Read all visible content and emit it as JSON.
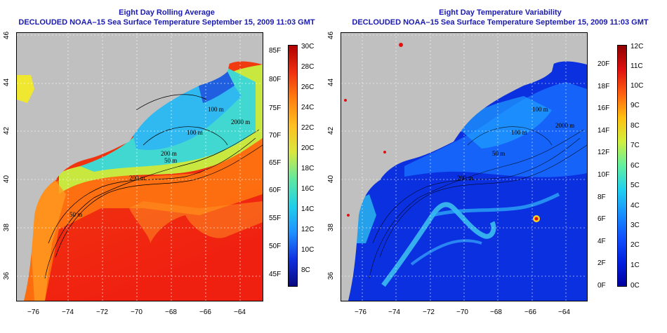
{
  "panels": [
    {
      "title_line1": "Eight Day Rolling Average",
      "title_line2": "DECLOUDED NOAA–15 Sea Surface Temperature September 15, 2009 11:03 GMT",
      "lat_ticks": [
        "46",
        "44",
        "42",
        "40",
        "38",
        "36"
      ],
      "lon_ticks": [
        "−76",
        "−74",
        "−72",
        "−70",
        "−68",
        "−66",
        "−64"
      ],
      "contour_labels": [
        "100 m",
        "100 m",
        "2000 m",
        "200 m",
        "200 m",
        "50 m",
        "50 m"
      ],
      "colorbar_c": [
        "30C",
        "28C",
        "26C",
        "24C",
        "22C",
        "20C",
        "18C",
        "16C",
        "14C",
        "12C",
        "10C",
        "8C"
      ],
      "colorbar_f": [
        "85F",
        "80F",
        "75F",
        "70F",
        "65F",
        "60F",
        "55F",
        "50F",
        "45F"
      ]
    },
    {
      "title_line1": "Eight Day Temperature Variability",
      "title_line2": "DECLOUDED NOAA–15 Sea Surface Temperature September 15, 2009 11:03 GMT",
      "lat_ticks": [
        "46",
        "44",
        "42",
        "40",
        "38",
        "36"
      ],
      "lon_ticks": [
        "−76",
        "−74",
        "−72",
        "−70",
        "−68",
        "−66",
        "−64"
      ],
      "contour_labels": [
        "100 m",
        "100 m",
        "2000 m",
        "200 m",
        "50 m"
      ],
      "colorbar_c": [
        "12C",
        "11C",
        "10C",
        "9C",
        "8C",
        "7C",
        "6C",
        "5C",
        "4C",
        "3C",
        "2C",
        "1C",
        "0C"
      ],
      "colorbar_f": [
        "20F",
        "18F",
        "16F",
        "14F",
        "12F",
        "10F",
        "8F",
        "6F",
        "4F",
        "2F",
        "0F"
      ]
    }
  ],
  "colors": {
    "title": "#1a1ab0",
    "land": "#c0c0c0",
    "sst_scale": [
      "#0a0a80",
      "#1030e0",
      "#2090ff",
      "#20d0e8",
      "#60e8a0",
      "#d8e840",
      "#ffc020",
      "#ff8010",
      "#f03010",
      "#b00000"
    ],
    "variability_scale": [
      "#0000a0",
      "#0020e0",
      "#1050ff",
      "#1890ff",
      "#20d0f0",
      "#60f0a0",
      "#d0f040",
      "#ffc010",
      "#ff6010",
      "#e01010",
      "#900000"
    ]
  }
}
